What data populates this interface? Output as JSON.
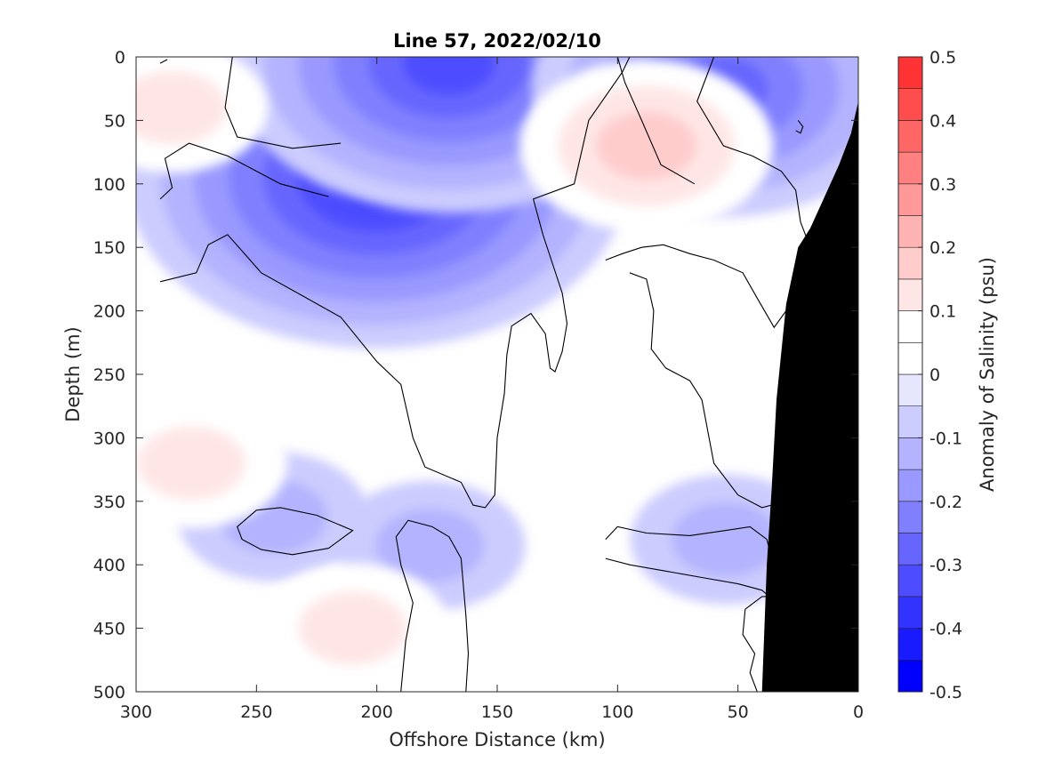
{
  "chart_data": {
    "type": "heatmap",
    "title": "Line 57, 2022/02/10",
    "xlabel": "Offshore Distance (km)",
    "ylabel": "Depth (m)",
    "colorbar_label": "Anomaly of Salinity (psu)",
    "xlim": [
      300,
      0
    ],
    "ylim": [
      0,
      500
    ],
    "x_ticks": [
      300,
      250,
      200,
      150,
      100,
      50,
      0
    ],
    "y_ticks": [
      0,
      50,
      100,
      150,
      200,
      250,
      300,
      350,
      400,
      450,
      500
    ],
    "colorbar": {
      "ticks": [
        0.5,
        0.4,
        0.3,
        0.2,
        0.1,
        0,
        -0.1,
        -0.2,
        -0.3,
        -0.4,
        -0.5
      ],
      "tick_labels": [
        "0.5",
        "0.4",
        "0.3",
        "0.2",
        "0.1",
        "0",
        "-0.1",
        "-0.2",
        "-0.3",
        "-0.4",
        "-0.5"
      ],
      "levels": [
        -0.5,
        -0.45,
        -0.4,
        -0.35,
        -0.3,
        -0.25,
        -0.2,
        -0.15,
        -0.1,
        -0.05,
        0,
        0.05,
        0.1,
        0.15,
        0.2,
        0.25,
        0.3,
        0.35,
        0.4,
        0.45,
        0.5
      ],
      "colors": [
        "#0000ff",
        "#1a1aff",
        "#3333ff",
        "#4d4dff",
        "#6666ff",
        "#8080ff",
        "#9999ff",
        "#b3b3ff",
        "#ccccff",
        "#e6e6ff",
        "#ffffff",
        "#ffffff",
        "#ffe6e6",
        "#ffcccc",
        "#ffb3b3",
        "#ff9999",
        "#ff8080",
        "#ff6666",
        "#ff4d4d",
        "#ff3333",
        "#ff0000"
      ]
    },
    "anomaly_features": [
      {
        "name": "fresh-core-upper",
        "x": 200,
        "depth": 95,
        "value": -0.35
      },
      {
        "name": "fresh-core-surface",
        "x": 170,
        "depth": 5,
        "value": -0.3
      },
      {
        "name": "fresh-nearshore-surface",
        "x": 57,
        "depth": 25,
        "value": -0.25
      },
      {
        "name": "fresh-small-250km",
        "x": 243,
        "depth": 362,
        "value": -0.1
      },
      {
        "name": "fresh-small-175km",
        "x": 178,
        "depth": 385,
        "value": -0.1
      },
      {
        "name": "fresh-small-55km",
        "x": 55,
        "depth": 380,
        "value": -0.1
      },
      {
        "name": "salty-core-90km",
        "x": 88,
        "depth": 70,
        "value": 0.15
      },
      {
        "name": "salty-offshore-surface",
        "x": 285,
        "depth": 40,
        "value": 0.1
      },
      {
        "name": "salty-offshore-deep",
        "x": 277,
        "depth": 320,
        "value": 0.1
      },
      {
        "name": "salty-deep-210km",
        "x": 210,
        "depth": 450,
        "value": 0.1
      },
      {
        "name": "salty-deep-75km",
        "x": 75,
        "depth": 470,
        "value": 0.05
      }
    ],
    "bathymetry_polygon": [
      [
        0,
        35
      ],
      [
        3,
        60
      ],
      [
        8,
        85
      ],
      [
        14,
        110
      ],
      [
        20,
        135
      ],
      [
        25,
        150
      ],
      [
        30,
        195
      ],
      [
        34,
        270
      ],
      [
        36,
        340
      ],
      [
        38,
        400
      ],
      [
        40,
        500
      ],
      [
        0,
        500
      ]
    ],
    "zero_contours": [
      [
        [
          290,
          5
        ],
        [
          287,
          2
        ]
      ],
      [
        [
          260,
          0
        ],
        [
          263,
          40
        ],
        [
          258,
          63
        ],
        [
          235,
          72
        ],
        [
          215,
          68
        ]
      ],
      [
        [
          290,
          112
        ],
        [
          285,
          103
        ],
        [
          288,
          80
        ],
        [
          278,
          68
        ],
        [
          262,
          78
        ],
        [
          240,
          100
        ],
        [
          220,
          110
        ]
      ],
      [
        [
          290,
          177
        ],
        [
          275,
          170
        ],
        [
          270,
          148
        ],
        [
          262,
          140
        ],
        [
          255,
          155
        ],
        [
          248,
          170
        ],
        [
          232,
          187
        ],
        [
          215,
          205
        ],
        [
          200,
          240
        ],
        [
          190,
          258
        ],
        [
          185,
          300
        ],
        [
          180,
          323
        ],
        [
          165,
          335
        ],
        [
          160,
          353
        ],
        [
          155,
          355
        ],
        [
          151,
          345
        ],
        [
          150,
          300
        ],
        [
          147,
          265
        ],
        [
          146,
          235
        ],
        [
          144,
          212
        ],
        [
          136,
          202
        ],
        [
          130,
          218
        ],
        [
          128,
          245
        ],
        [
          126,
          248
        ],
        [
          123,
          232
        ],
        [
          121,
          210
        ],
        [
          123,
          186
        ],
        [
          131,
          140
        ],
        [
          135,
          112
        ],
        [
          118,
          100
        ],
        [
          112,
          50
        ],
        [
          98,
          12
        ],
        [
          95,
          0
        ]
      ],
      [
        [
          100,
          0
        ],
        [
          97,
          20
        ],
        [
          90,
          50
        ],
        [
          82,
          85
        ],
        [
          68,
          100
        ]
      ],
      [
        [
          60,
          0
        ],
        [
          67,
          35
        ],
        [
          56,
          70
        ],
        [
          44,
          78
        ],
        [
          32,
          90
        ],
        [
          26,
          105
        ],
        [
          24,
          130
        ],
        [
          20,
          150
        ]
      ],
      [
        [
          25,
          50
        ],
        [
          23,
          55
        ],
        [
          24,
          60
        ],
        [
          26,
          58
        ]
      ],
      [
        [
          105,
          160
        ],
        [
          98,
          155
        ],
        [
          90,
          150
        ],
        [
          81,
          148
        ],
        [
          70,
          155
        ],
        [
          60,
          160
        ],
        [
          48,
          170
        ],
        [
          42,
          190
        ],
        [
          35,
          213
        ],
        [
          30,
          200
        ],
        [
          26,
          185
        ]
      ],
      [
        [
          95,
          170
        ],
        [
          88,
          175
        ],
        [
          85,
          200
        ],
        [
          86,
          230
        ],
        [
          80,
          245
        ],
        [
          75,
          250
        ],
        [
          70,
          255
        ],
        [
          65,
          270
        ],
        [
          60,
          320
        ],
        [
          50,
          345
        ],
        [
          40,
          355
        ],
        [
          30,
          350
        ]
      ],
      [
        [
          250,
          357
        ],
        [
          240,
          355
        ],
        [
          225,
          361
        ],
        [
          210,
          373
        ],
        [
          220,
          387
        ],
        [
          235,
          392
        ],
        [
          248,
          388
        ],
        [
          256,
          380
        ],
        [
          258,
          370
        ],
        [
          250,
          357
        ]
      ],
      [
        [
          190,
          500
        ],
        [
          188,
          460
        ],
        [
          185,
          430
        ],
        [
          190,
          400
        ],
        [
          192,
          378
        ],
        [
          187,
          365
        ],
        [
          177,
          370
        ],
        [
          170,
          378
        ],
        [
          165,
          395
        ],
        [
          163,
          440
        ],
        [
          162,
          470
        ],
        [
          163,
          500
        ]
      ],
      [
        [
          105,
          380
        ],
        [
          100,
          370
        ],
        [
          88,
          375
        ],
        [
          70,
          377
        ],
        [
          55,
          373
        ],
        [
          45,
          370
        ],
        [
          38,
          380
        ],
        [
          36,
          395
        ],
        [
          32,
          400
        ],
        [
          28,
          402
        ],
        [
          22,
          405
        ],
        [
          10,
          410
        ],
        [
          0,
          410
        ]
      ],
      [
        [
          105,
          395
        ],
        [
          95,
          400
        ],
        [
          80,
          405
        ],
        [
          65,
          410
        ],
        [
          50,
          415
        ],
        [
          40,
          420
        ],
        [
          34,
          430
        ],
        [
          32,
          440
        ]
      ],
      [
        [
          42,
          500
        ],
        [
          45,
          485
        ],
        [
          43,
          470
        ],
        [
          48,
          455
        ],
        [
          47,
          435
        ],
        [
          40,
          425
        ],
        [
          34,
          425
        ]
      ]
    ]
  }
}
